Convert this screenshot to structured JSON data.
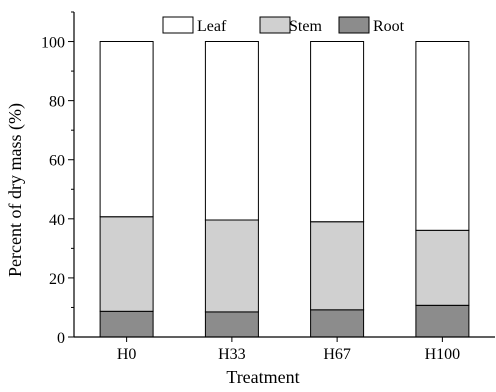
{
  "chart_data": {
    "type": "bar",
    "stacked": true,
    "categories": [
      "H0",
      "H33",
      "H67",
      "H100"
    ],
    "series": [
      {
        "name": "Root",
        "values": [
          8.7,
          8.5,
          9.2,
          10.7
        ],
        "color": "#8c8c8c"
      },
      {
        "name": "Stem",
        "values": [
          32.0,
          31.1,
          29.8,
          25.4
        ],
        "color": "#d0d0d0"
      },
      {
        "name": "Leaf",
        "values": [
          59.3,
          60.4,
          61.0,
          63.9
        ],
        "color": "#ffffff"
      }
    ],
    "legend_order": [
      "Leaf",
      "Stem",
      "Root"
    ],
    "legend_position": "top-right",
    "xlabel": "Treatment",
    "ylabel": "Percent of dry mass (%)",
    "ylim": [
      0,
      110
    ],
    "yticks": [
      0,
      20,
      40,
      60,
      80,
      100
    ],
    "grid": false
  }
}
